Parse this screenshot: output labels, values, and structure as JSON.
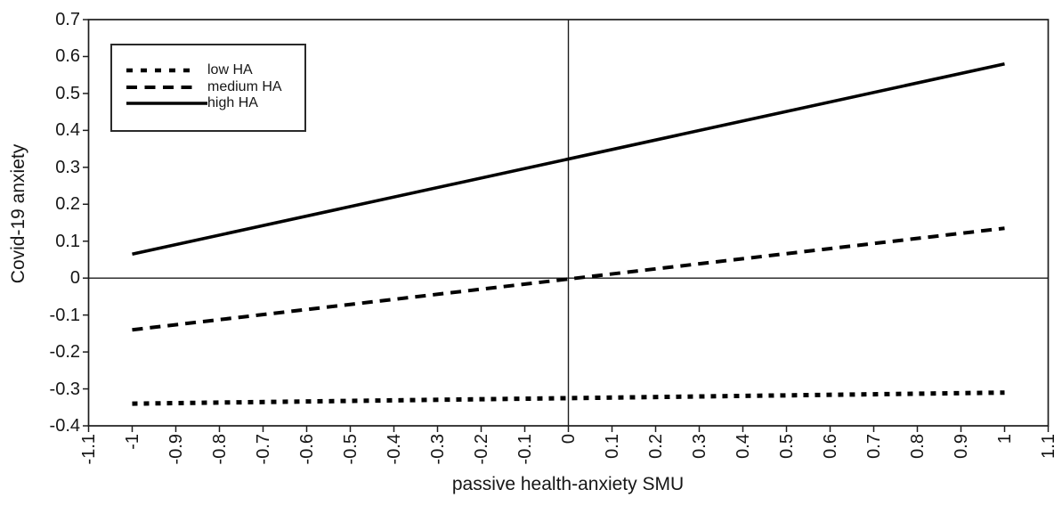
{
  "figure": {
    "background": "#ffffff",
    "foreground": "#000000"
  },
  "chart_data": {
    "type": "line",
    "title": "",
    "xlabel": "passive health-anxiety SMU",
    "ylabel": "Covid-19 anxiety",
    "xlim": [
      -1.1,
      1.1
    ],
    "ylim": [
      -0.4,
      0.7
    ],
    "x_ticks": [
      -1.1,
      -1,
      -0.9,
      -0.8,
      -0.7,
      -0.6,
      -0.5,
      -0.4,
      -0.3,
      -0.2,
      -0.1,
      0,
      0.1,
      0.2,
      0.3,
      0.4,
      0.5,
      0.6,
      0.7,
      0.8,
      0.9,
      1,
      1.1
    ],
    "x_tick_labels": [
      "-1.1",
      "-1",
      "-0.9",
      "-0.8",
      "-0.7",
      "-0.6",
      "-0.5",
      "-0.4",
      "-0.3",
      "-0.2",
      "-0.1",
      "0",
      "0.1",
      "0.2",
      "0.3",
      "0.4",
      "0.5",
      "0.6",
      "0.7",
      "0.8",
      "0.9",
      "1",
      "1.1"
    ],
    "y_ticks": [
      -0.4,
      -0.3,
      -0.2,
      -0.1,
      0,
      0.1,
      0.2,
      0.3,
      0.4,
      0.5,
      0.6,
      0.7
    ],
    "y_tick_labels": [
      "-0.4",
      "-0.3",
      "-0.2",
      "-0.1",
      "0",
      "0.1",
      "0.2",
      "0.3",
      "0.4",
      "0.5",
      "0.6",
      "0.7"
    ],
    "grid": false,
    "reference_lines": {
      "x": 0,
      "y": 0
    },
    "legend_position": "top-left",
    "line_color": "#000000",
    "series": [
      {
        "name": "low HA",
        "style": "dotted",
        "x": [
          -1,
          1
        ],
        "y": [
          -0.34,
          -0.31
        ]
      },
      {
        "name": "medium HA",
        "style": "dashed",
        "x": [
          -1,
          1
        ],
        "y": [
          -0.14,
          0.135
        ]
      },
      {
        "name": "high HA",
        "style": "solid",
        "x": [
          -1,
          1
        ],
        "y": [
          0.065,
          0.58
        ]
      }
    ]
  }
}
